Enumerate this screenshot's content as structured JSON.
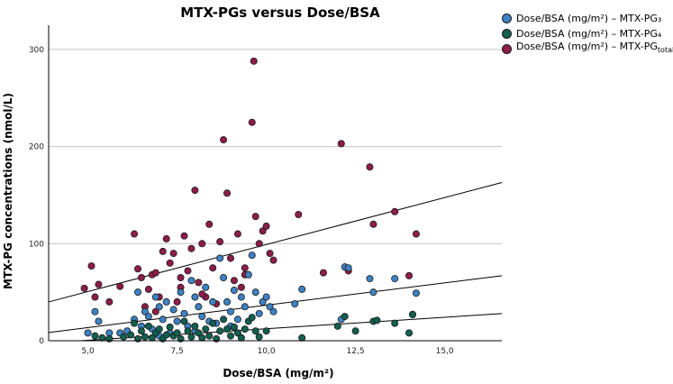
{
  "chart_data": {
    "type": "scatter",
    "title": "MTX-PGs versus Dose/BSA",
    "xlabel": "Dose/BSA (mg/m²)",
    "ylabel": "MTX-PG concentrations (nmol/L)",
    "xlim": [
      3.9,
      16.6
    ],
    "ylim": [
      0,
      325
    ],
    "x_ticks": [
      5,
      7.5,
      10,
      12.5,
      15
    ],
    "x_tick_labels": [
      "5,0",
      "7,5",
      "10,0",
      "12,5",
      "15,0"
    ],
    "y_ticks": [
      0,
      100,
      200,
      300
    ],
    "y_tick_labels": [
      "0",
      "100",
      "200",
      "300"
    ],
    "grid": "horizontal",
    "legend_position": "top-right",
    "series": [
      {
        "name": "Dose/BSA (mg/m²) – MTX-PG₃",
        "color": "#3d82c4",
        "fit": [
          [
            3.9,
            8.5
          ],
          [
            16.6,
            67
          ]
        ],
        "points": [
          [
            5.0,
            8
          ],
          [
            5.2,
            30
          ],
          [
            5.3,
            20
          ],
          [
            5.6,
            8
          ],
          [
            5.9,
            8
          ],
          [
            6.1,
            10
          ],
          [
            6.3,
            22
          ],
          [
            6.4,
            50
          ],
          [
            6.5,
            15
          ],
          [
            6.6,
            30
          ],
          [
            6.7,
            25
          ],
          [
            6.8,
            12
          ],
          [
            6.9,
            45
          ],
          [
            7.0,
            35
          ],
          [
            7.1,
            22
          ],
          [
            7.2,
            40
          ],
          [
            7.3,
            8
          ],
          [
            7.4,
            32
          ],
          [
            7.5,
            20
          ],
          [
            7.6,
            50
          ],
          [
            7.7,
            28
          ],
          [
            7.8,
            15
          ],
          [
            7.9,
            62
          ],
          [
            8.0,
            45
          ],
          [
            8.1,
            35
          ],
          [
            8.2,
            25
          ],
          [
            8.3,
            55
          ],
          [
            8.4,
            20
          ],
          [
            8.5,
            40
          ],
          [
            8.6,
            18
          ],
          [
            8.7,
            85
          ],
          [
            8.8,
            65
          ],
          [
            8.9,
            40
          ],
          [
            9.0,
            30
          ],
          [
            9.1,
            52
          ],
          [
            9.2,
            22
          ],
          [
            9.3,
            45
          ],
          [
            9.4,
            35
          ],
          [
            9.5,
            68
          ],
          [
            9.6,
            88
          ],
          [
            9.7,
            50
          ],
          [
            9.8,
            28
          ],
          [
            9.9,
            40
          ],
          [
            10.0,
            45
          ],
          [
            10.1,
            35
          ],
          [
            10.2,
            30
          ],
          [
            10.8,
            38
          ],
          [
            11.0,
            53
          ],
          [
            12.1,
            22
          ],
          [
            12.2,
            76
          ],
          [
            12.3,
            75
          ],
          [
            12.9,
            64
          ],
          [
            13.0,
            50
          ],
          [
            13.6,
            64
          ],
          [
            14.1,
            27
          ],
          [
            14.2,
            49
          ],
          [
            7.0,
            5
          ],
          [
            8.0,
            10
          ],
          [
            9.0,
            15
          ]
        ]
      },
      {
        "name": "Dose/BSA (mg/m²) – MTX-PG₄",
        "color": "#12604f",
        "fit": [
          [
            4.8,
            0
          ],
          [
            16.6,
            28
          ]
        ],
        "points": [
          [
            5.2,
            5
          ],
          [
            5.4,
            3
          ],
          [
            5.6,
            2
          ],
          [
            6.0,
            4
          ],
          [
            6.2,
            6
          ],
          [
            6.3,
            18
          ],
          [
            6.4,
            2
          ],
          [
            6.5,
            10
          ],
          [
            6.6,
            4
          ],
          [
            6.7,
            15
          ],
          [
            6.8,
            3
          ],
          [
            6.9,
            8
          ],
          [
            7.0,
            12
          ],
          [
            7.1,
            2
          ],
          [
            7.2,
            6
          ],
          [
            7.3,
            14
          ],
          [
            7.4,
            5
          ],
          [
            7.5,
            8
          ],
          [
            7.6,
            2
          ],
          [
            7.7,
            20
          ],
          [
            7.8,
            10
          ],
          [
            7.9,
            4
          ],
          [
            8.0,
            15
          ],
          [
            8.1,
            8
          ],
          [
            8.2,
            3
          ],
          [
            8.3,
            12
          ],
          [
            8.4,
            5
          ],
          [
            8.5,
            18
          ],
          [
            8.6,
            2
          ],
          [
            8.7,
            10
          ],
          [
            8.8,
            22
          ],
          [
            8.9,
            12
          ],
          [
            9.0,
            5
          ],
          [
            9.1,
            14
          ],
          [
            9.2,
            8
          ],
          [
            9.3,
            3
          ],
          [
            9.4,
            12
          ],
          [
            9.5,
            20
          ],
          [
            9.6,
            24
          ],
          [
            9.7,
            10
          ],
          [
            9.8,
            4
          ],
          [
            10.0,
            10
          ],
          [
            11.0,
            3
          ],
          [
            12.0,
            15
          ],
          [
            12.2,
            25
          ],
          [
            12.5,
            10
          ],
          [
            13.0,
            20
          ],
          [
            13.1,
            21
          ],
          [
            13.6,
            18
          ],
          [
            14.0,
            8
          ],
          [
            14.1,
            27
          ]
        ]
      },
      {
        "name": "Dose/BSA (mg/m²) – MTX-PG",
        "name_subscript": "total",
        "color": "#8e1d48",
        "fit": [
          [
            3.9,
            40
          ],
          [
            16.6,
            163
          ]
        ],
        "points": [
          [
            4.9,
            54
          ],
          [
            5.1,
            77
          ],
          [
            5.2,
            45
          ],
          [
            5.3,
            58
          ],
          [
            5.6,
            40
          ],
          [
            5.9,
            56
          ],
          [
            6.3,
            110
          ],
          [
            6.4,
            74
          ],
          [
            6.5,
            65
          ],
          [
            6.6,
            35
          ],
          [
            6.7,
            53
          ],
          [
            6.8,
            68
          ],
          [
            6.9,
            70
          ],
          [
            7.0,
            45
          ],
          [
            7.1,
            92
          ],
          [
            7.2,
            105
          ],
          [
            7.3,
            80
          ],
          [
            7.4,
            90
          ],
          [
            7.5,
            40
          ],
          [
            7.6,
            65
          ],
          [
            7.7,
            108
          ],
          [
            7.8,
            72
          ],
          [
            7.9,
            95
          ],
          [
            8.0,
            155
          ],
          [
            8.1,
            60
          ],
          [
            8.2,
            100
          ],
          [
            8.3,
            45
          ],
          [
            8.4,
            120
          ],
          [
            8.5,
            75
          ],
          [
            8.6,
            38
          ],
          [
            8.7,
            102
          ],
          [
            8.8,
            207
          ],
          [
            8.9,
            152
          ],
          [
            9.0,
            85
          ],
          [
            9.1,
            62
          ],
          [
            9.2,
            110
          ],
          [
            9.3,
            55
          ],
          [
            9.4,
            75
          ],
          [
            9.6,
            225
          ],
          [
            9.65,
            288
          ],
          [
            9.7,
            128
          ],
          [
            9.8,
            100
          ],
          [
            9.9,
            113
          ],
          [
            10.0,
            118
          ],
          [
            10.1,
            90
          ],
          [
            10.2,
            83
          ],
          [
            10.9,
            130
          ],
          [
            11.6,
            70
          ],
          [
            12.1,
            203
          ],
          [
            12.3,
            72
          ],
          [
            12.9,
            179
          ],
          [
            13.0,
            120
          ],
          [
            13.6,
            133
          ],
          [
            14.0,
            67
          ],
          [
            14.2,
            110
          ],
          [
            6.9,
            30
          ],
          [
            7.6,
            55
          ],
          [
            8.2,
            48
          ],
          [
            9.4,
            68
          ]
        ]
      }
    ]
  }
}
